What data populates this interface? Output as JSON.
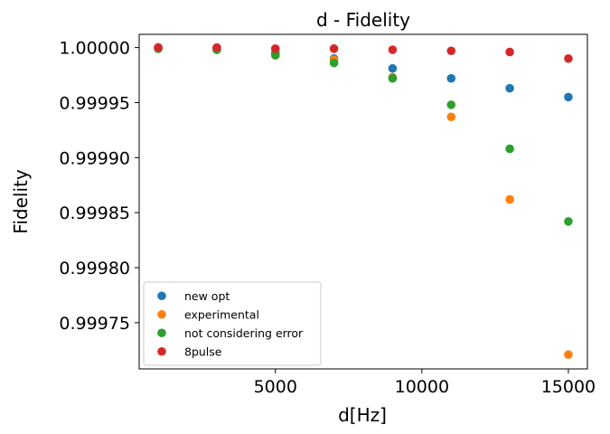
{
  "chart_data": {
    "type": "scatter",
    "title": "d - Fidelity",
    "xlabel": "d[Hz]",
    "ylabel": "Fidelity",
    "xlim": [
      350,
      15650
    ],
    "ylim": [
      0.999708,
      1.000012
    ],
    "xticks": [
      5000,
      10000,
      15000
    ],
    "yticks": [
      0.99975,
      0.9998,
      0.99985,
      0.9999,
      0.99995,
      1.0
    ],
    "xtick_labels": [
      "5000",
      "10000",
      "15000"
    ],
    "ytick_labels": [
      "0.99975",
      "0.99980",
      "0.99985",
      "0.99990",
      "0.99995",
      "1.00000"
    ],
    "legend_position": "lower-left",
    "x": [
      1000,
      3000,
      5000,
      7000,
      9000,
      11000,
      13000,
      15000
    ],
    "series": [
      {
        "name": "new opt",
        "color": "#1f77b4",
        "values": [
          1.0,
          0.999999,
          0.999995,
          0.99999,
          0.999981,
          0.999972,
          0.999963,
          0.999955
        ]
      },
      {
        "name": "experimental",
        "color": "#ff7f0e",
        "values": [
          0.999999,
          0.999998,
          0.999993,
          0.999989,
          0.999973,
          0.999937,
          0.999862,
          0.999721
        ]
      },
      {
        "name": "not considering error",
        "color": "#2ca02c",
        "values": [
          0.999999,
          0.999998,
          0.999993,
          0.999986,
          0.999972,
          0.999948,
          0.999908,
          0.999842
        ]
      },
      {
        "name": "8pulse",
        "color": "#d62728",
        "values": [
          1.0,
          1.0,
          0.999999,
          0.999999,
          0.999998,
          0.999997,
          0.999996,
          0.99999
        ]
      }
    ]
  }
}
